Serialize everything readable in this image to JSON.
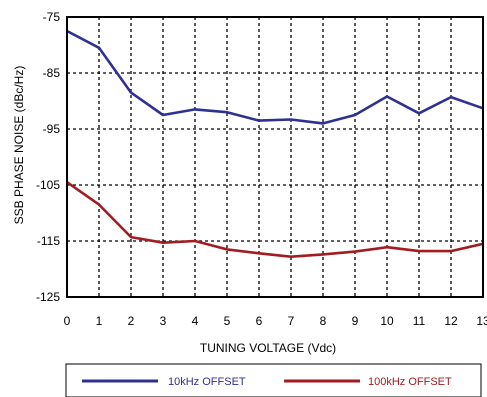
{
  "chart_data": {
    "type": "line",
    "title": "",
    "xlabel": "TUNING VOLTAGE (Vdc)",
    "ylabel": "SSB PHASE NOISE (dBc/Hz)",
    "xlim": [
      0,
      13
    ],
    "ylim": [
      -125,
      -75
    ],
    "x_ticks": [
      0,
      1,
      2,
      3,
      4,
      5,
      6,
      7,
      8,
      9,
      10,
      11,
      12,
      13
    ],
    "y_ticks": [
      -75,
      -85,
      -95,
      -105,
      -115,
      -125
    ],
    "x_tick_labels": [
      "0",
      "1",
      "2",
      "3",
      "4",
      "5",
      "6",
      "7",
      "8",
      "9",
      "10",
      "11",
      "12",
      "13"
    ],
    "y_tick_labels": [
      "-75",
      "-85",
      "-95",
      "-105",
      "-115",
      "-125"
    ],
    "grid": true,
    "legend_position": "bottom",
    "x": [
      0,
      1,
      2,
      3,
      4,
      5,
      6,
      7,
      8,
      9,
      10,
      11,
      12,
      13
    ],
    "series": [
      {
        "name": "10kHz OFFSET",
        "color": "#2e3192",
        "values": [
          -77.5,
          -80.5,
          -88.5,
          -92.5,
          -91.5,
          -92,
          -93.5,
          -93.3,
          -94,
          -92.5,
          -89.2,
          -92.2,
          -89.3,
          -91.3
        ]
      },
      {
        "name": "100kHz OFFSET",
        "color": "#a11d21",
        "values": [
          -104.5,
          -108.5,
          -114.3,
          -115.3,
          -115,
          -116.5,
          -117.2,
          -117.8,
          -117.4,
          -116.9,
          -116.1,
          -116.8,
          -116.8,
          -115.5
        ]
      }
    ]
  }
}
